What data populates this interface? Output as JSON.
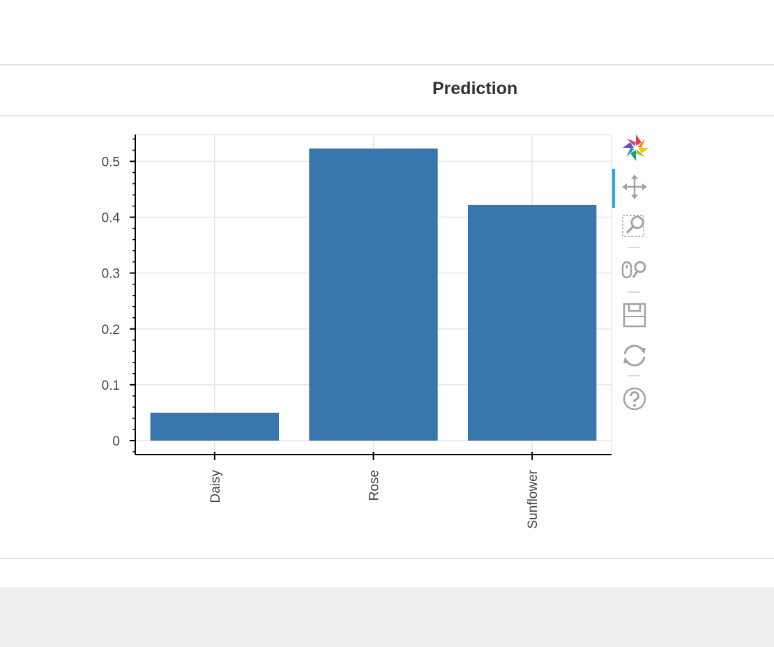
{
  "panel": {
    "title": "Prediction"
  },
  "colors": {
    "bar": "#3a76ae",
    "grid": "#e5e5e5",
    "axis": "#000000",
    "tool_icon": "#a3a3a3",
    "active_tool": "#26aae1"
  },
  "toolbar": {
    "tools": [
      {
        "name": "bokeh-logo-icon"
      },
      {
        "name": "pan-icon",
        "active": true
      },
      {
        "name": "box-zoom-icon"
      },
      {
        "name": "wheel-zoom-icon"
      },
      {
        "name": "save-icon"
      },
      {
        "name": "reset-icon"
      },
      {
        "name": "help-icon"
      }
    ]
  },
  "chart_data": {
    "type": "bar",
    "categories": [
      "Daisy",
      "Rose",
      "Sunflower"
    ],
    "values": [
      0.05,
      0.523,
      0.422
    ],
    "title": "",
    "xlabel": "",
    "ylabel": "",
    "ylim": [
      -0.025,
      0.548
    ],
    "yticks": [
      0,
      0.1,
      0.2,
      0.3,
      0.4,
      0.5
    ],
    "ytick_labels": [
      "0",
      "0.1",
      "0.2",
      "0.3",
      "0.4",
      "0.5"
    ],
    "grid": true,
    "x_tick_label_orientation": "vertical"
  }
}
